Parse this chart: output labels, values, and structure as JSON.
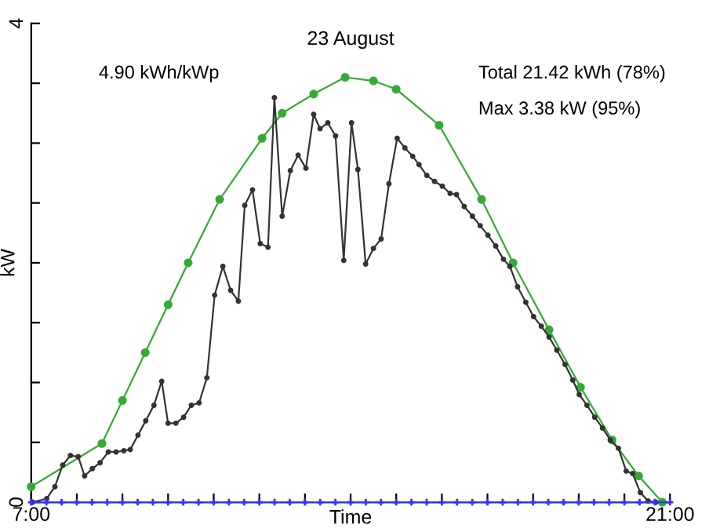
{
  "chart_data": {
    "type": "line",
    "title": "23 August",
    "xlabel": "Time",
    "ylabel": "kW",
    "annotations": [
      "4.90 kWh/kWp",
      "Total 21.42 kWh (78%)",
      "Max 3.38 kW (95%)"
    ],
    "xlim": [
      7,
      21
    ],
    "ylim": [
      0,
      4
    ],
    "xticks": [
      {
        "value": 7,
        "label": "7:00"
      },
      {
        "value": 8,
        "label": null
      },
      {
        "value": 9,
        "label": null
      },
      {
        "value": 10,
        "label": null
      },
      {
        "value": 11,
        "label": null
      },
      {
        "value": 12,
        "label": null
      },
      {
        "value": 13,
        "label": null
      },
      {
        "value": 14,
        "label": null
      },
      {
        "value": 15,
        "label": null
      },
      {
        "value": 16,
        "label": null
      },
      {
        "value": 17,
        "label": null
      },
      {
        "value": 18,
        "label": null
      },
      {
        "value": 19,
        "label": null
      },
      {
        "value": 20,
        "label": null
      },
      {
        "value": 21,
        "label": "21:00"
      }
    ],
    "yticks": [
      0,
      {
        "value": 0.5,
        "label": null
      },
      {
        "value": 1,
        "label": null
      },
      {
        "value": 1.5,
        "label": null
      },
      {
        "value": 2,
        "label": null
      },
      {
        "value": 2.5,
        "label": null
      },
      {
        "value": 3,
        "label": null
      },
      {
        "value": 3.5,
        "label": null
      },
      4
    ],
    "grid": false,
    "legend": false,
    "series": [
      {
        "color": "#3333ff",
        "marker": "cross",
        "x": [
          7,
          7.333,
          7.667,
          8,
          8.333,
          8.667,
          9,
          9.333,
          9.667,
          10,
          10.333,
          10.667,
          11,
          11.333,
          11.667,
          12,
          12.333,
          12.667,
          13,
          13.333,
          13.667,
          14,
          14.333,
          14.667,
          15,
          15.333,
          15.667,
          16,
          16.333,
          16.667,
          17,
          17.333,
          17.667,
          18,
          18.333,
          18.667,
          19,
          19.333,
          19.667,
          20,
          20.333,
          20.667,
          21
        ],
        "values": [
          0,
          0,
          0,
          0,
          0,
          0,
          0,
          0,
          0,
          0,
          0,
          0,
          0,
          0,
          0,
          0,
          0,
          0,
          0,
          0,
          0,
          0,
          0,
          0,
          0,
          0,
          0,
          0,
          0,
          0,
          0,
          0,
          0,
          0,
          0,
          0,
          0,
          0,
          0,
          0,
          0,
          0,
          0
        ]
      },
      {
        "color": "#33aa33",
        "marker": "circle",
        "x": [
          7.0,
          8.55,
          9.0,
          9.5,
          10.0,
          10.44,
          11.13,
          12.06,
          12.5,
          13.19,
          13.88,
          14.5,
          15.0,
          15.94,
          16.87,
          17.56,
          18.35,
          19.04,
          19.73,
          20.31,
          20.83
        ],
        "values": [
          0.13,
          0.49,
          0.85,
          1.25,
          1.65,
          2.0,
          2.53,
          3.04,
          3.25,
          3.41,
          3.55,
          3.52,
          3.45,
          3.15,
          2.53,
          2.0,
          1.44,
          0.96,
          0.52,
          0.22,
          0
        ]
      },
      {
        "color": "#333333",
        "marker": "circle",
        "x": [
          7.03,
          7.34,
          7.52,
          7.69,
          7.86,
          8.03,
          8.17,
          8.34,
          8.51,
          8.69,
          8.86,
          9.03,
          9.17,
          9.34,
          9.51,
          9.69,
          9.86,
          10.0,
          10.17,
          10.34,
          10.51,
          10.68,
          10.85,
          11.02,
          11.2,
          11.37,
          11.54,
          11.68,
          11.85,
          12.02,
          12.19,
          12.33,
          12.5,
          12.68,
          12.85,
          13.02,
          13.19,
          13.33,
          13.5,
          13.67,
          13.85,
          14.02,
          14.16,
          14.33,
          14.5,
          14.67,
          14.84,
          15.02,
          15.19,
          15.36,
          15.5,
          15.67,
          15.84,
          16.01,
          16.18,
          16.32,
          16.49,
          16.67,
          16.84,
          17.01,
          17.18,
          17.35,
          17.49,
          17.66,
          17.84,
          18.01,
          18.18,
          18.35,
          18.52,
          18.7,
          18.87,
          19.01,
          19.18,
          19.35,
          19.52,
          19.69,
          19.87,
          20.04,
          20.18,
          20.35,
          20.52,
          20.69
        ],
        "values": [
          0,
          0.03,
          0.13,
          0.31,
          0.39,
          0.38,
          0.22,
          0.28,
          0.33,
          0.42,
          0.42,
          0.43,
          0.44,
          0.56,
          0.68,
          0.81,
          1.01,
          0.66,
          0.66,
          0.71,
          0.81,
          0.83,
          1.04,
          1.73,
          1.97,
          1.77,
          1.68,
          2.48,
          2.61,
          2.16,
          2.13,
          3.38,
          2.39,
          2.77,
          2.9,
          2.79,
          3.24,
          3.12,
          3.17,
          3.06,
          2.02,
          3.17,
          2.78,
          1.99,
          2.12,
          2.2,
          2.66,
          3.04,
          2.96,
          2.89,
          2.82,
          2.73,
          2.68,
          2.64,
          2.58,
          2.57,
          2.47,
          2.39,
          2.31,
          2.23,
          2.14,
          2.03,
          1.97,
          1.8,
          1.67,
          1.55,
          1.47,
          1.38,
          1.27,
          1.15,
          1.02,
          0.9,
          0.81,
          0.71,
          0.62,
          0.52,
          0.45,
          0.26,
          0.24,
          0.08,
          0.01,
          0
        ]
      }
    ]
  }
}
